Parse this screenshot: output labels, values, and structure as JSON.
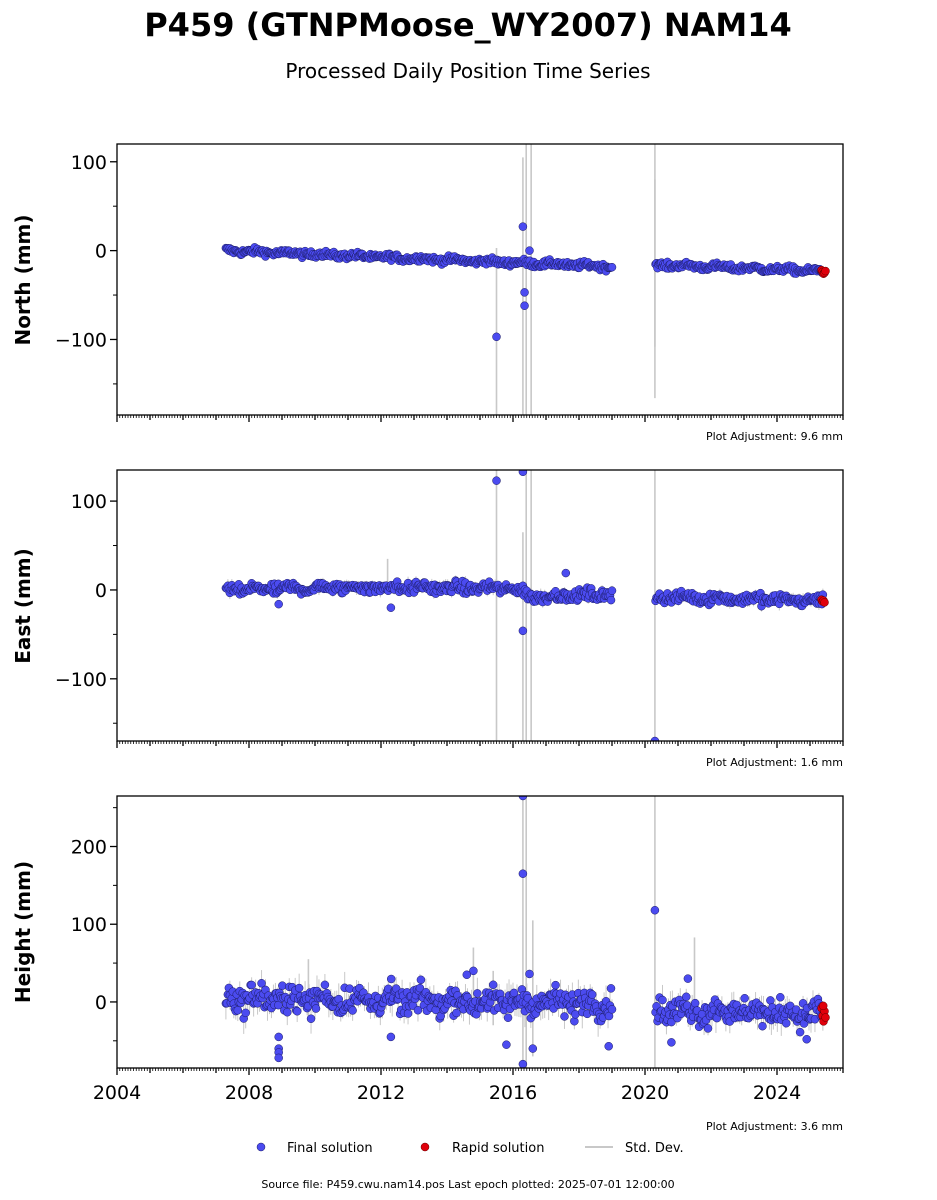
{
  "title": "P459 (GTNPMoose_WY2007) NAM14",
  "subtitle": "Processed Daily Position Time Series",
  "footer": "Source file: P459.cwu.nam14.pos  Last epoch plotted: 2025-07-01 12:00:00",
  "colors": {
    "final": "#4b4bf0",
    "rapid": "#e0000b",
    "std": "#c8c8c8"
  },
  "legend": {
    "final": "Final solution",
    "rapid": "Rapid solution",
    "std": "Std. Dev."
  },
  "chart_data": [
    {
      "type": "scatter",
      "ylabel": "North (mm)",
      "adjustment": "Plot Adjustment: 9.6 mm",
      "xlim": [
        2004.0,
        2026.0
      ],
      "ylim": [
        -185,
        120
      ],
      "yticks": [
        100,
        0,
        -100
      ],
      "ytick_labels": [
        "100",
        "0",
        "−100"
      ],
      "trend": {
        "x": [
          2007.3,
          2019.0,
          2020.4,
          2025.4
        ],
        "y": [
          0,
          -18,
          -16,
          -23
        ],
        "noise": 3
      },
      "outliers": [
        [
          2015.5,
          -97
        ],
        [
          2016.3,
          27
        ],
        [
          2016.35,
          -47
        ],
        [
          2016.35,
          -62
        ],
        [
          2016.5,
          0
        ]
      ],
      "stddev_spikes": [
        [
          2015.5,
          -185,
          3
        ],
        [
          2016.3,
          -185,
          105
        ],
        [
          2016.4,
          -185,
          120
        ],
        [
          2016.55,
          -185,
          120
        ],
        [
          2020.3,
          -166,
          120
        ],
        [
          2020.3,
          -108,
          80
        ]
      ],
      "rapid_points": [
        [
          2025.35,
          -22
        ],
        [
          2025.38,
          -24
        ],
        [
          2025.41,
          -26
        ],
        [
          2025.44,
          -25
        ],
        [
          2025.47,
          -23
        ]
      ],
      "gaps": [
        [
          2019.0,
          2020.3
        ]
      ]
    },
    {
      "type": "scatter",
      "ylabel": "East (mm)",
      "adjustment": "Plot Adjustment: 1.6 mm",
      "xlim": [
        2004.0,
        2026.0
      ],
      "ylim": [
        -170,
        135
      ],
      "yticks": [
        100,
        0,
        -100
      ],
      "ytick_labels": [
        "100",
        "0",
        "−100"
      ],
      "trend": {
        "x": [
          2007.3,
          2011.0,
          2016.0,
          2016.6,
          2019.0,
          2020.4,
          2025.4
        ],
        "y": [
          0,
          3,
          2,
          -8,
          -5,
          -8,
          -12
        ],
        "noise": 5
      },
      "outliers": [
        [
          2015.5,
          123
        ],
        [
          2016.3,
          133
        ],
        [
          2016.3,
          -46
        ],
        [
          2017.6,
          19
        ],
        [
          2020.3,
          -170
        ],
        [
          2012.3,
          -20
        ],
        [
          2008.9,
          -16
        ]
      ],
      "stddev_spikes": [
        [
          2015.5,
          -170,
          135
        ],
        [
          2016.3,
          -170,
          65
        ],
        [
          2016.4,
          -170,
          135
        ],
        [
          2016.55,
          -170,
          135
        ],
        [
          2020.3,
          -170,
          135
        ],
        [
          2012.2,
          -5,
          35
        ]
      ],
      "rapid_points": [
        [
          2025.35,
          -11
        ],
        [
          2025.38,
          -13
        ],
        [
          2025.41,
          -12
        ],
        [
          2025.44,
          -14
        ]
      ],
      "gaps": [
        [
          2019.0,
          2020.3
        ]
      ]
    },
    {
      "type": "scatter",
      "ylabel": "Height (mm)",
      "adjustment": "Plot Adjustment: 3.6 mm",
      "xlim": [
        2004.0,
        2026.0
      ],
      "ylim": [
        -85,
        265
      ],
      "yticks": [
        200,
        100,
        0
      ],
      "ytick_labels": [
        "200",
        "100",
        "0"
      ],
      "xticks": [
        2004,
        2008,
        2012,
        2016,
        2020,
        2024
      ],
      "xtick_labels": [
        "2004",
        "2008",
        "2012",
        "2016",
        "2020",
        "2024"
      ],
      "trend": {
        "x": [
          2007.3,
          2019.0,
          2020.4,
          2025.4
        ],
        "y": [
          5,
          -2,
          -10,
          -15
        ],
        "noise": 14
      },
      "outliers": [
        [
          2016.3,
          265
        ],
        [
          2016.3,
          165
        ],
        [
          2020.3,
          118
        ],
        [
          2008.9,
          -45
        ],
        [
          2008.9,
          -60
        ],
        [
          2008.9,
          -65
        ],
        [
          2008.9,
          -72
        ],
        [
          2016.6,
          -60
        ],
        [
          2015.8,
          -55
        ],
        [
          2018.9,
          -57
        ],
        [
          2020.8,
          -52
        ],
        [
          2021.3,
          30
        ],
        [
          2014.8,
          40
        ],
        [
          2014.6,
          35
        ],
        [
          2016.5,
          36
        ],
        [
          2012.3,
          -45
        ],
        [
          2024.9,
          -48
        ],
        [
          2016.3,
          -80
        ]
      ],
      "stddev_spikes": [
        [
          2016.3,
          -85,
          265
        ],
        [
          2016.4,
          -85,
          265
        ],
        [
          2016.6,
          -70,
          105
        ],
        [
          2020.3,
          -85,
          265
        ],
        [
          2015.4,
          -30,
          40
        ],
        [
          2014.8,
          -20,
          70
        ],
        [
          2021.5,
          -10,
          83
        ],
        [
          2009.8,
          -25,
          55
        ]
      ],
      "rapid_points": [
        [
          2025.35,
          -8
        ],
        [
          2025.38,
          -18
        ],
        [
          2025.41,
          -25
        ],
        [
          2025.44,
          -12
        ],
        [
          2025.47,
          -20
        ],
        [
          2025.4,
          -5
        ]
      ],
      "gaps": [
        [
          2019.0,
          2020.3
        ]
      ]
    }
  ]
}
